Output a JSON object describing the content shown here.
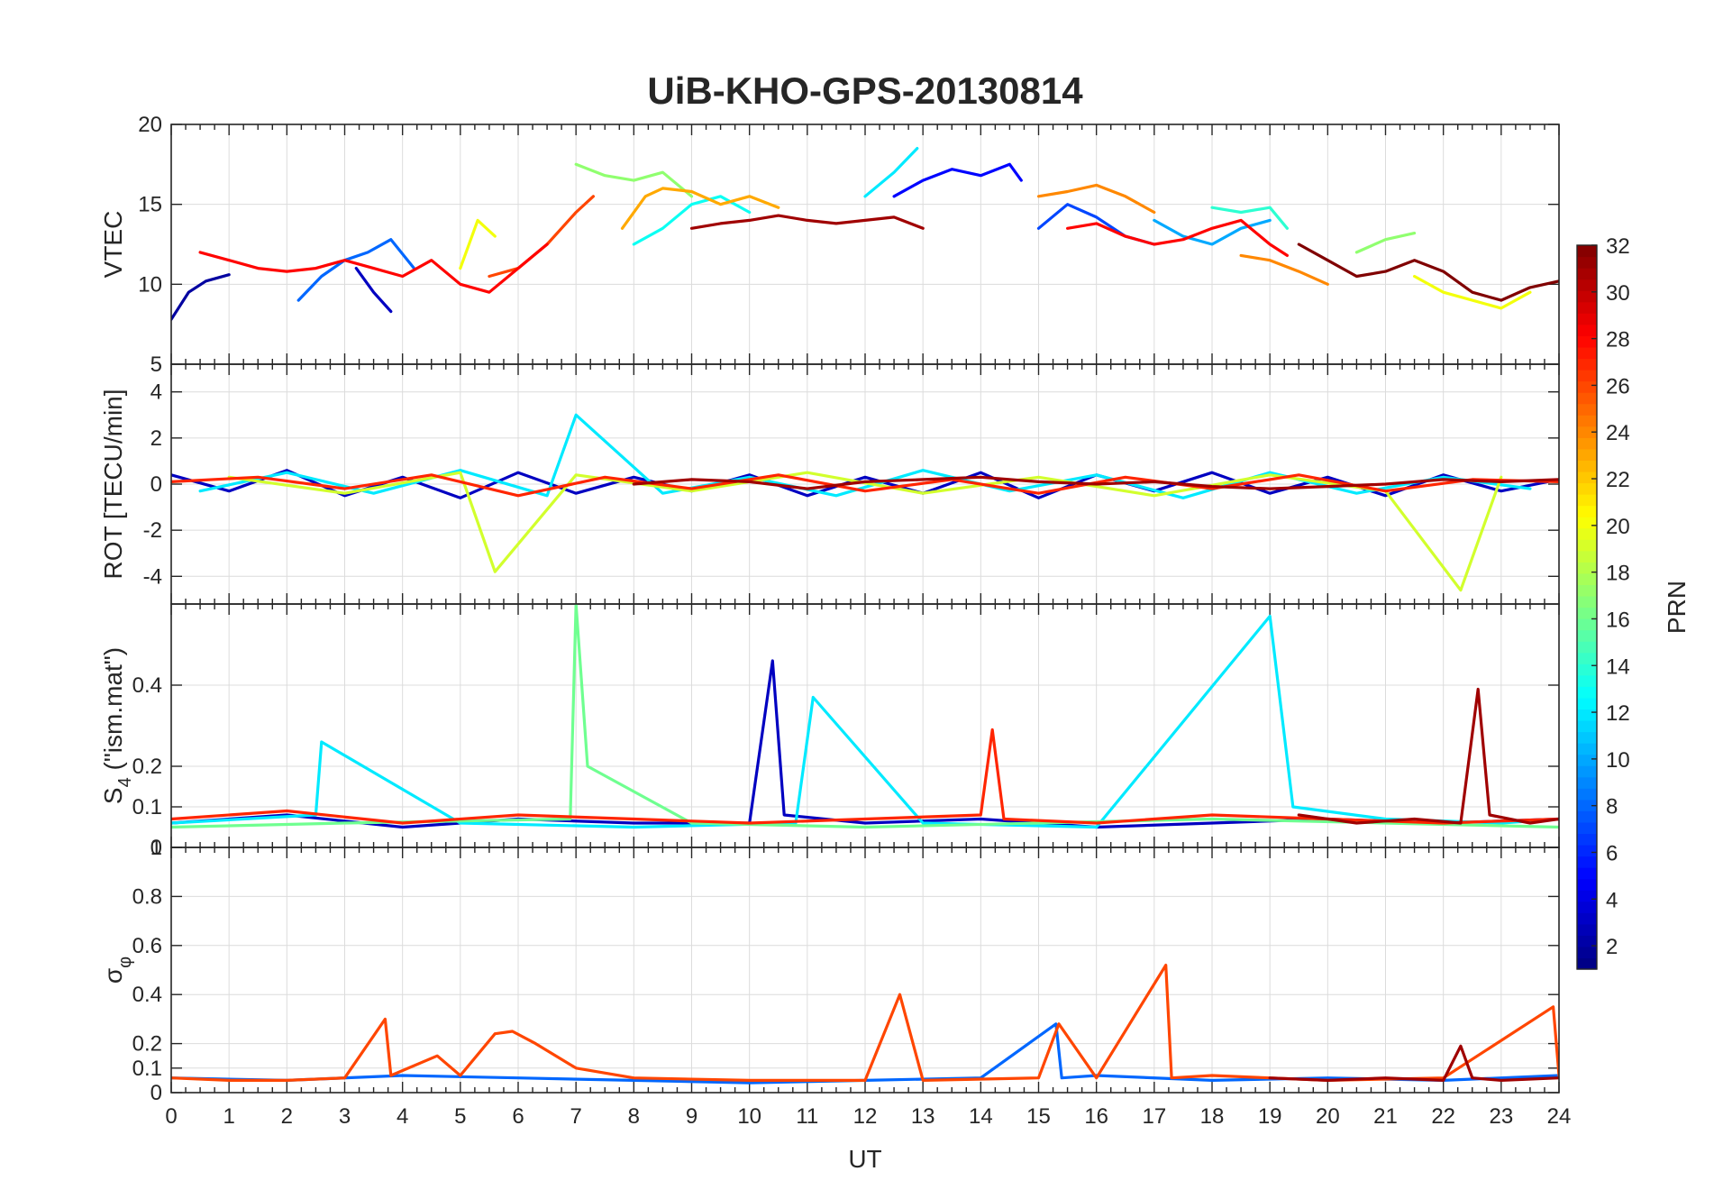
{
  "chart_data": {
    "title": "UiB-KHO-GPS-20130814",
    "type": "line",
    "xlabel": "UT",
    "xlim": [
      0,
      24
    ],
    "x_ticks": [
      "0",
      "1",
      "2",
      "3",
      "4",
      "5",
      "6",
      "7",
      "8",
      "9",
      "10",
      "11",
      "12",
      "13",
      "14",
      "15",
      "16",
      "17",
      "18",
      "19",
      "20",
      "21",
      "22",
      "23",
      "24"
    ],
    "grid": true,
    "colormap": "jet",
    "colorbar": {
      "label": "PRN",
      "range": [
        1,
        32
      ],
      "ticks": [
        "2",
        "4",
        "6",
        "8",
        "10",
        "12",
        "14",
        "16",
        "18",
        "20",
        "22",
        "24",
        "26",
        "28",
        "30",
        "32"
      ],
      "placement": "right"
    },
    "panels": [
      {
        "id": "vtec",
        "ylabel": "VTEC",
        "ylim": [
          5,
          20
        ],
        "y_ticks": [
          {
            "value": 10,
            "label": "10"
          },
          {
            "value": 15,
            "label": "15"
          },
          {
            "value": 20,
            "label": "20"
          },
          {
            "value": 5,
            "label": "5"
          }
        ],
        "series": [
          {
            "prn": 2,
            "x": [
              0.0,
              0.3,
              0.6,
              1.0
            ],
            "y": [
              7.8,
              9.5,
              10.2,
              10.6
            ]
          },
          {
            "prn": 3,
            "x": [
              3.2,
              3.5,
              3.8
            ],
            "y": [
              11.0,
              9.5,
              8.3
            ]
          },
          {
            "prn": 5,
            "x": [
              12.5,
              13.0,
              13.5,
              14.0,
              14.5,
              14.7
            ],
            "y": [
              15.5,
              16.5,
              17.2,
              16.8,
              17.5,
              16.5
            ]
          },
          {
            "prn": 7,
            "x": [
              15.0,
              15.5,
              16.0,
              16.5,
              17.0
            ],
            "y": [
              13.5,
              15.0,
              14.2,
              13.0,
              12.5
            ]
          },
          {
            "prn": 8,
            "x": [
              2.2,
              2.6,
              3.0,
              3.4,
              3.8,
              4.2
            ],
            "y": [
              9.0,
              10.5,
              11.5,
              12.0,
              12.8,
              11.0
            ]
          },
          {
            "prn": 10,
            "x": [
              17.0,
              17.5,
              18.0,
              18.5,
              19.0
            ],
            "y": [
              14.0,
              13.0,
              12.5,
              13.5,
              14.0
            ]
          },
          {
            "prn": 12,
            "x": [
              12.0,
              12.5,
              12.9
            ],
            "y": [
              15.5,
              17.0,
              18.5
            ]
          },
          {
            "prn": 13,
            "x": [
              8.0,
              8.5,
              9.0,
              9.5,
              10.0
            ],
            "y": [
              12.5,
              13.5,
              15.0,
              15.5,
              14.5
            ]
          },
          {
            "prn": 14,
            "x": [
              18.0,
              18.5,
              19.0,
              19.3
            ],
            "y": [
              14.8,
              14.5,
              14.8,
              13.5
            ]
          },
          {
            "prn": 17,
            "x": [
              7.0,
              7.5,
              8.0,
              8.5,
              9.0
            ],
            "y": [
              17.5,
              16.8,
              16.5,
              17.0,
              15.5
            ]
          },
          {
            "prn": 17,
            "x": [
              20.5,
              21.0,
              21.5
            ],
            "y": [
              12.0,
              12.8,
              13.2
            ]
          },
          {
            "prn": 20,
            "x": [
              5.0,
              5.3,
              5.6
            ],
            "y": [
              11.0,
              14.0,
              13.0
            ]
          },
          {
            "prn": 20,
            "x": [
              21.5,
              22.0,
              22.5,
              23.0,
              23.5
            ],
            "y": [
              10.5,
              9.5,
              9.0,
              8.5,
              9.5
            ]
          },
          {
            "prn": 23,
            "x": [
              7.8,
              8.2,
              8.5,
              9.0,
              9.5,
              10.0,
              10.5
            ],
            "y": [
              13.5,
              15.5,
              16.0,
              15.8,
              15.0,
              15.5,
              14.8
            ]
          },
          {
            "prn": 24,
            "x": [
              15.0,
              15.5,
              16.0,
              16.5,
              17.0
            ],
            "y": [
              15.5,
              15.8,
              16.2,
              15.5,
              14.5
            ]
          },
          {
            "prn": 24,
            "x": [
              18.5,
              19.0,
              19.5,
              20.0
            ],
            "y": [
              11.8,
              11.5,
              10.8,
              10.0
            ]
          },
          {
            "prn": 26,
            "x": [
              5.5,
              6.0,
              6.5,
              7.0,
              7.3
            ],
            "y": [
              10.5,
              11.0,
              12.5,
              14.5,
              15.5
            ]
          },
          {
            "prn": 28,
            "x": [
              0.5,
              1.0,
              1.5,
              2.0,
              2.5,
              3.0,
              3.5,
              4.0,
              4.5,
              5.0,
              5.5,
              6.0,
              6.5
            ],
            "y": [
              12.0,
              11.5,
              11.0,
              10.8,
              11.0,
              11.5,
              11.0,
              10.5,
              11.5,
              10.0,
              9.5,
              11.0,
              12.5
            ]
          },
          {
            "prn": 28,
            "x": [
              15.5,
              16.0,
              16.5,
              17.0,
              17.5,
              18.0,
              18.5,
              19.0,
              19.3
            ],
            "y": [
              13.5,
              13.8,
              13.0,
              12.5,
              12.8,
              13.5,
              14.0,
              12.5,
              11.8
            ]
          },
          {
            "prn": 31,
            "x": [
              9.0,
              9.5,
              10.0,
              10.5,
              11.0,
              11.5,
              12.0,
              12.5,
              13.0
            ],
            "y": [
              13.5,
              13.8,
              14.0,
              14.3,
              14.0,
              13.8,
              14.0,
              14.2,
              13.5
            ]
          },
          {
            "prn": 32,
            "x": [
              19.5,
              20.0,
              20.5,
              21.0,
              21.5,
              22.0,
              22.5,
              23.0,
              23.5,
              24.0
            ],
            "y": [
              12.5,
              11.5,
              10.5,
              10.8,
              11.5,
              10.8,
              9.5,
              9.0,
              9.8,
              10.2
            ]
          }
        ]
      },
      {
        "id": "rot",
        "ylabel": "ROT [TECU/min]",
        "ylim": [
          -5.2,
          5.2
        ],
        "y_ticks": [
          {
            "value": -4,
            "label": "-4"
          },
          {
            "value": -2,
            "label": "-2"
          },
          {
            "value": 0,
            "label": "0"
          },
          {
            "value": 2,
            "label": "2"
          },
          {
            "value": 4,
            "label": "4"
          }
        ],
        "series": [
          {
            "prn": 3,
            "x": [
              0.0,
              1.0,
              2.0,
              3.0,
              4.0,
              5.0,
              6.0,
              7.0,
              8.0,
              9.0,
              10.0,
              11.0,
              12.0,
              13.0,
              14.0,
              15.0,
              16.0,
              17.0,
              18.0,
              19.0,
              20.0,
              21.0,
              22.0,
              23.0,
              24.0
            ],
            "y": [
              0.4,
              -0.3,
              0.6,
              -0.5,
              0.3,
              -0.6,
              0.5,
              -0.4,
              0.3,
              -0.3,
              0.4,
              -0.5,
              0.3,
              -0.4,
              0.5,
              -0.6,
              0.4,
              -0.3,
              0.5,
              -0.4,
              0.3,
              -0.5,
              0.4,
              -0.3,
              0.2
            ]
          },
          {
            "prn": 12,
            "x": [
              0.5,
              2.0,
              3.5,
              5.0,
              6.5,
              7.0,
              8.5,
              10.0,
              11.5,
              13.0,
              14.5,
              16.0,
              17.5,
              19.0,
              20.5,
              22.0,
              23.5
            ],
            "y": [
              -0.3,
              0.5,
              -0.4,
              0.6,
              -0.5,
              3.0,
              -0.4,
              0.3,
              -0.5,
              0.6,
              -0.3,
              0.4,
              -0.6,
              0.5,
              -0.4,
              0.3,
              -0.2
            ]
          },
          {
            "prn": 19,
            "x": [
              1.0,
              3.0,
              5.0,
              5.6,
              7.0,
              9.0,
              11.0,
              13.0,
              15.0,
              17.0,
              19.0,
              21.0,
              22.3,
              23.0
            ],
            "y": [
              0.3,
              -0.4,
              0.5,
              -3.8,
              0.4,
              -0.3,
              0.5,
              -0.4,
              0.3,
              -0.5,
              0.4,
              -0.3,
              -4.6,
              0.3
            ]
          },
          {
            "prn": 27,
            "x": [
              0.0,
              1.5,
              3.0,
              4.5,
              6.0,
              7.5,
              9.0,
              10.5,
              12.0,
              13.5,
              15.0,
              16.5,
              18.0,
              19.5,
              21.0,
              22.5,
              24.0
            ],
            "y": [
              0.1,
              0.3,
              -0.2,
              0.4,
              -0.5,
              0.3,
              -0.2,
              0.4,
              -0.3,
              0.2,
              -0.4,
              0.3,
              -0.2,
              0.4,
              -0.3,
              0.2,
              0.1
            ]
          },
          {
            "prn": 31,
            "x": [
              8.0,
              9.0,
              10.0,
              11.0,
              12.0,
              13.0,
              14.0,
              15.0,
              16.0,
              17.0,
              18.0,
              19.0,
              20.0,
              21.0,
              22.0,
              23.0,
              24.0
            ],
            "y": [
              0.0,
              0.2,
              0.1,
              -0.2,
              0.1,
              0.2,
              0.3,
              0.1,
              0.0,
              0.1,
              -0.1,
              -0.2,
              -0.1,
              0.0,
              0.2,
              0.1,
              0.2
            ]
          }
        ]
      },
      {
        "id": "s4",
        "ylabel": "S_4 (\"ism.mat\")",
        "ylabel_main": "S",
        "ylabel_sub": "4",
        "ylabel_rest": " (\"ism.mat\")",
        "ylim": [
          0,
          0.6
        ],
        "y_ticks": [
          {
            "value": 0,
            "label": "0"
          },
          {
            "value": 0.1,
            "label": "0.1"
          },
          {
            "value": 0.2,
            "label": "0.2"
          },
          {
            "value": 0.4,
            "label": "0.4"
          }
        ],
        "series": [
          {
            "prn": 3,
            "x": [
              0.0,
              2.0,
              4.0,
              6.0,
              8.0,
              10.0,
              10.4,
              10.6,
              12.0,
              14.0,
              16.0,
              18.0,
              20.0,
              22.0,
              24.0
            ],
            "y": [
              0.06,
              0.08,
              0.05,
              0.07,
              0.06,
              0.06,
              0.46,
              0.08,
              0.06,
              0.07,
              0.05,
              0.06,
              0.07,
              0.06,
              0.07
            ]
          },
          {
            "prn": 12,
            "x": [
              0.0,
              2.5,
              2.6,
              5.0,
              8.0,
              10.8,
              11.1,
              13.0,
              16.0,
              19.0,
              19.4,
              21.0,
              23.0,
              24.0
            ],
            "y": [
              0.06,
              0.08,
              0.26,
              0.06,
              0.05,
              0.06,
              0.37,
              0.06,
              0.05,
              0.57,
              0.1,
              0.07,
              0.06,
              0.07
            ]
          },
          {
            "prn": 16,
            "x": [
              0.0,
              3.0,
              6.9,
              7.0,
              7.2,
              9.0,
              12.0,
              15.0,
              18.0,
              21.0,
              24.0
            ],
            "y": [
              0.05,
              0.06,
              0.07,
              0.6,
              0.2,
              0.06,
              0.05,
              0.06,
              0.07,
              0.06,
              0.05
            ]
          },
          {
            "prn": 27,
            "x": [
              0.0,
              2.0,
              4.0,
              6.0,
              8.0,
              10.0,
              12.0,
              14.0,
              14.2,
              14.4,
              16.0,
              18.0,
              20.0,
              22.0,
              24.0
            ],
            "y": [
              0.07,
              0.09,
              0.06,
              0.08,
              0.07,
              0.06,
              0.07,
              0.08,
              0.29,
              0.07,
              0.06,
              0.08,
              0.07,
              0.06,
              0.07
            ]
          },
          {
            "prn": 31,
            "x": [
              19.5,
              20.5,
              21.5,
              22.3,
              22.6,
              22.8,
              23.5,
              24.0
            ],
            "y": [
              0.08,
              0.06,
              0.07,
              0.06,
              0.39,
              0.08,
              0.06,
              0.07
            ]
          }
        ]
      },
      {
        "id": "sigphi",
        "ylabel": "σ_φ",
        "ylabel_main": "σ",
        "ylabel_sub": "φ",
        "ylim": [
          0,
          1
        ],
        "y_ticks": [
          {
            "value": 0,
            "label": "0"
          },
          {
            "value": 0.1,
            "label": "0.1"
          },
          {
            "value": 0.2,
            "label": "0.2"
          },
          {
            "value": 0.4,
            "label": "0.4"
          },
          {
            "value": 0.6,
            "label": "0.6"
          },
          {
            "value": 0.8,
            "label": "0.8"
          },
          {
            "value": 1,
            "label": "1"
          }
        ],
        "series": [
          {
            "prn": 8,
            "x": [
              0.0,
              2.0,
              4.0,
              6.0,
              8.0,
              10.0,
              12.0,
              14.0,
              15.3,
              15.4,
              16.0,
              18.0,
              20.0,
              22.0,
              24.0
            ],
            "y": [
              0.06,
              0.05,
              0.07,
              0.06,
              0.05,
              0.04,
              0.05,
              0.06,
              0.28,
              0.06,
              0.07,
              0.05,
              0.06,
              0.05,
              0.07
            ]
          },
          {
            "prn": 26,
            "x": [
              0.0,
              1.0,
              2.0,
              3.0,
              3.7,
              3.8,
              4.6,
              5.0,
              5.6,
              5.9,
              6.3,
              7.0,
              8.0,
              10.0,
              12.0,
              12.6,
              13.0,
              15.0,
              15.35,
              16.0,
              17.2,
              17.3,
              18.0,
              20.0,
              22.0,
              23.9,
              24.0
            ],
            "y": [
              0.06,
              0.05,
              0.05,
              0.06,
              0.3,
              0.07,
              0.15,
              0.07,
              0.24,
              0.25,
              0.2,
              0.1,
              0.06,
              0.05,
              0.05,
              0.4,
              0.05,
              0.06,
              0.28,
              0.06,
              0.52,
              0.06,
              0.07,
              0.05,
              0.06,
              0.35,
              0.07
            ]
          },
          {
            "prn": 31,
            "x": [
              19.0,
              20.0,
              21.0,
              22.0,
              22.3,
              22.5,
              23.0,
              24.0
            ],
            "y": [
              0.06,
              0.05,
              0.06,
              0.05,
              0.19,
              0.06,
              0.05,
              0.06
            ]
          }
        ]
      }
    ]
  }
}
